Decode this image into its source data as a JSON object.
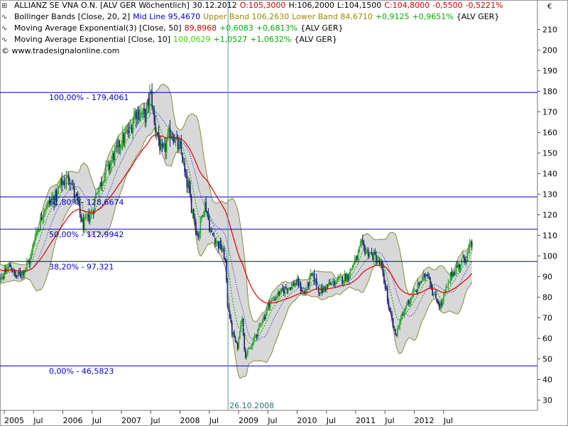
{
  "header": {
    "line1": {
      "title": "ALLIANZ SE VNA O.N. [ALV GER  Wöchentlich]",
      "date": "30.12.2012",
      "open": "O:105,3000",
      "high": "H:106,2000",
      "low": "L:104,1500",
      "close": "C:104,8000",
      "change": "-0,5500",
      "change_pct": "-0,5221%"
    },
    "line2": {
      "name": "Bollinger Bands [Close, 20, 2]",
      "mid": "Mid Line 95,4670",
      "upper": "Upper Band 106,2630",
      "lower": "Lower Band 84,6710",
      "chg": "+0,9125",
      "chg_pct": "+0,9651%",
      "tag": "{ALV GER}"
    },
    "line3": {
      "name": "Moving Average Exponential(3) [Close, 50]",
      "value": "89,8968",
      "chg": "+0,6083",
      "chg_pct": "+0,6813%",
      "tag": "{ALV GER}"
    },
    "line4": {
      "name": "Moving Average Exponential [Close, 10]",
      "value": "100,0629",
      "chg": "+1,0527",
      "chg_pct": "+1,0632%",
      "tag": "{ALV GER}"
    },
    "line5": {
      "copyright": "© www.tradesignalonline.com"
    }
  },
  "currency_label": "€",
  "colors": {
    "up_candle": "#28a428",
    "down_candle": "#1a1a7a",
    "ema50": "#e00000",
    "ema10": "#00a000",
    "bollinger_fill": "#d8d8d8",
    "bollinger_line": "#8a8a3a",
    "bollinger_mid": "#0000c8",
    "fib_line": "#0000c8",
    "vline": "#5a9a9a"
  },
  "chart_data": {
    "type": "candlestick",
    "ylim": [
      25,
      220
    ],
    "y_ticks": [
      "30",
      "40",
      "50",
      "60",
      "70",
      "80",
      "90",
      "100",
      "110",
      "120",
      "130",
      "140",
      "150",
      "160",
      "170",
      "180",
      "190",
      "200",
      "210"
    ],
    "x_ticks": [
      {
        "label": "2005",
        "t": 2005.0
      },
      {
        "label": "Jul",
        "t": 2005.5
      },
      {
        "label": "2006",
        "t": 2006.0
      },
      {
        "label": "Jul",
        "t": 2006.5
      },
      {
        "label": "2007",
        "t": 2007.0
      },
      {
        "label": "Jul",
        "t": 2007.5
      },
      {
        "label": "2008",
        "t": 2008.0
      },
      {
        "label": "Jul",
        "t": 2008.5
      },
      {
        "label": "2009",
        "t": 2009.0
      },
      {
        "label": "Jul",
        "t": 2009.5
      },
      {
        "label": "2010",
        "t": 2010.0
      },
      {
        "label": "Jul",
        "t": 2010.5
      },
      {
        "label": "2011",
        "t": 2011.0
      },
      {
        "label": "Jul",
        "t": 2011.5
      },
      {
        "label": "2012",
        "t": 2012.0
      },
      {
        "label": "Jul",
        "t": 2012.5
      }
    ],
    "fib_levels": [
      {
        "label": "100,00% - 179,4061",
        "value": 179.4061
      },
      {
        "label": "61,80% - 128,6674",
        "value": 128.6674
      },
      {
        "label": "50,00% - 112,9942",
        "value": 112.9942
      },
      {
        "label": "38,20% - 97,321",
        "value": 97.321
      },
      {
        "label": "0,00% - 46,5823",
        "value": 46.5823
      }
    ],
    "vertical_marker": {
      "label": "26.10.2008",
      "t": 2008.82
    },
    "price_anchors": [
      [
        2004.83,
        93
      ],
      [
        2004.95,
        90
      ],
      [
        2005.1,
        95
      ],
      [
        2005.2,
        90
      ],
      [
        2005.3,
        92
      ],
      [
        2005.42,
        97
      ],
      [
        2005.55,
        112
      ],
      [
        2005.7,
        124
      ],
      [
        2005.85,
        128
      ],
      [
        2006.0,
        136
      ],
      [
        2006.12,
        138
      ],
      [
        2006.22,
        128
      ],
      [
        2006.35,
        115
      ],
      [
        2006.48,
        120
      ],
      [
        2006.6,
        133
      ],
      [
        2006.75,
        142
      ],
      [
        2006.9,
        150
      ],
      [
        2007.0,
        156
      ],
      [
        2007.12,
        160
      ],
      [
        2007.25,
        170
      ],
      [
        2007.4,
        168
      ],
      [
        2007.5,
        178
      ],
      [
        2007.58,
        162
      ],
      [
        2007.7,
        150
      ],
      [
        2007.85,
        160
      ],
      [
        2008.0,
        152
      ],
      [
        2008.12,
        135
      ],
      [
        2008.22,
        122
      ],
      [
        2008.3,
        110
      ],
      [
        2008.42,
        125
      ],
      [
        2008.55,
        110
      ],
      [
        2008.68,
        105
      ],
      [
        2008.76,
        100
      ],
      [
        2008.82,
        75
      ],
      [
        2008.9,
        62
      ],
      [
        2008.98,
        56
      ],
      [
        2009.05,
        70
      ],
      [
        2009.12,
        52
      ],
      [
        2009.2,
        55
      ],
      [
        2009.3,
        62
      ],
      [
        2009.42,
        70
      ],
      [
        2009.55,
        78
      ],
      [
        2009.7,
        82
      ],
      [
        2009.85,
        85
      ],
      [
        2010.0,
        87
      ],
      [
        2010.12,
        82
      ],
      [
        2010.25,
        90
      ],
      [
        2010.4,
        83
      ],
      [
        2010.55,
        86
      ],
      [
        2010.7,
        88
      ],
      [
        2010.85,
        90
      ],
      [
        2011.0,
        98
      ],
      [
        2011.1,
        105
      ],
      [
        2011.2,
        102
      ],
      [
        2011.3,
        100
      ],
      [
        2011.42,
        96
      ],
      [
        2011.5,
        86
      ],
      [
        2011.58,
        72
      ],
      [
        2011.68,
        62
      ],
      [
        2011.78,
        70
      ],
      [
        2011.9,
        78
      ],
      [
        2012.0,
        82
      ],
      [
        2012.12,
        88
      ],
      [
        2012.22,
        92
      ],
      [
        2012.35,
        80
      ],
      [
        2012.45,
        76
      ],
      [
        2012.55,
        84
      ],
      [
        2012.65,
        92
      ],
      [
        2012.75,
        95
      ],
      [
        2012.85,
        99
      ],
      [
        2012.99,
        105
      ]
    ]
  }
}
